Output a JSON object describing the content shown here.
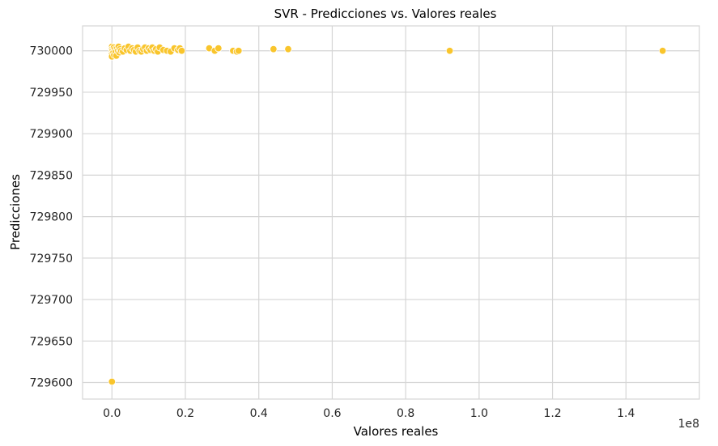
{
  "chart_data": {
    "type": "scatter",
    "title": "SVR - Predicciones vs. Valores reales",
    "xlabel": "Valores reales",
    "ylabel": "Predicciones",
    "x_offset_label": "1e8",
    "xlim": [
      -0.08,
      1.6
    ],
    "ylim": [
      729580,
      730030
    ],
    "xticks": [
      0.0,
      0.2,
      0.4,
      0.6,
      0.8,
      1.0,
      1.2,
      1.4
    ],
    "xtick_labels": [
      "0.0",
      "0.2",
      "0.4",
      "0.6",
      "0.8",
      "1.0",
      "1.2",
      "1.4"
    ],
    "yticks": [
      729600,
      729650,
      729700,
      729750,
      729800,
      729850,
      729900,
      729950,
      730000
    ],
    "ytick_labels": [
      "729600",
      "729650",
      "729700",
      "729750",
      "729800",
      "729850",
      "729900",
      "729950",
      "730000"
    ],
    "grid": true,
    "marker_color": "#f9c52c",
    "marker_edge": "#ffffff",
    "points": [
      {
        "x": 0.0,
        "y": 729601
      },
      {
        "x": 0.0,
        "y": 730005
      },
      {
        "x": 0.0,
        "y": 730002
      },
      {
        "x": 0.0,
        "y": 729999
      },
      {
        "x": 0.0,
        "y": 729996
      },
      {
        "x": 0.0,
        "y": 729993
      },
      {
        "x": 0.002,
        "y": 730001
      },
      {
        "x": 0.004,
        "y": 729998
      },
      {
        "x": 0.005,
        "y": 730004
      },
      {
        "x": 0.006,
        "y": 729995
      },
      {
        "x": 0.008,
        "y": 730002
      },
      {
        "x": 0.01,
        "y": 729999
      },
      {
        "x": 0.012,
        "y": 729994
      },
      {
        "x": 0.014,
        "y": 730003
      },
      {
        "x": 0.016,
        "y": 730000
      },
      {
        "x": 0.018,
        "y": 730005
      },
      {
        "x": 0.02,
        "y": 729998
      },
      {
        "x": 0.022,
        "y": 730002
      },
      {
        "x": 0.025,
        "y": 730000
      },
      {
        "x": 0.03,
        "y": 729999
      },
      {
        "x": 0.035,
        "y": 730003
      },
      {
        "x": 0.04,
        "y": 730001
      },
      {
        "x": 0.045,
        "y": 730005
      },
      {
        "x": 0.05,
        "y": 730000
      },
      {
        "x": 0.055,
        "y": 730003
      },
      {
        "x": 0.06,
        "y": 730001
      },
      {
        "x": 0.065,
        "y": 729999
      },
      {
        "x": 0.07,
        "y": 730004
      },
      {
        "x": 0.075,
        "y": 730000
      },
      {
        "x": 0.08,
        "y": 729999
      },
      {
        "x": 0.085,
        "y": 730002
      },
      {
        "x": 0.09,
        "y": 730004
      },
      {
        "x": 0.095,
        "y": 730000
      },
      {
        "x": 0.1,
        "y": 730003
      },
      {
        "x": 0.105,
        "y": 730001
      },
      {
        "x": 0.11,
        "y": 730004
      },
      {
        "x": 0.115,
        "y": 730000
      },
      {
        "x": 0.12,
        "y": 730002
      },
      {
        "x": 0.125,
        "y": 729999
      },
      {
        "x": 0.13,
        "y": 730004
      },
      {
        "x": 0.14,
        "y": 730001
      },
      {
        "x": 0.15,
        "y": 730000
      },
      {
        "x": 0.16,
        "y": 729999
      },
      {
        "x": 0.17,
        "y": 730003
      },
      {
        "x": 0.18,
        "y": 730001
      },
      {
        "x": 0.185,
        "y": 730003
      },
      {
        "x": 0.19,
        "y": 730000
      },
      {
        "x": 0.265,
        "y": 730003
      },
      {
        "x": 0.28,
        "y": 730000
      },
      {
        "x": 0.29,
        "y": 730003
      },
      {
        "x": 0.33,
        "y": 730000
      },
      {
        "x": 0.34,
        "y": 729999
      },
      {
        "x": 0.345,
        "y": 730000
      },
      {
        "x": 0.44,
        "y": 730002
      },
      {
        "x": 0.48,
        "y": 730002
      },
      {
        "x": 0.92,
        "y": 730000
      },
      {
        "x": 1.5,
        "y": 730000
      }
    ]
  }
}
